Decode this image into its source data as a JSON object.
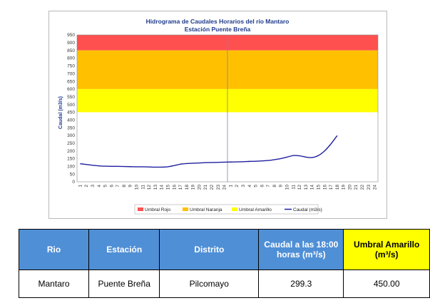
{
  "chart_data": {
    "type": "line",
    "title": "Hidrograma de Caudales Horarios del río Mantaro",
    "subtitle": "Estación Puente Breña",
    "ylabel": "Caudal  (m3/s)",
    "xlabel": "",
    "ylim": [
      0,
      950
    ],
    "yticks": [
      0,
      50,
      100,
      150,
      200,
      250,
      300,
      350,
      400,
      450,
      500,
      550,
      600,
      650,
      700,
      750,
      800,
      850,
      900,
      950
    ],
    "x_ticks": [
      "1",
      "2",
      "3",
      "4",
      "5",
      "6",
      "7",
      "8",
      "9",
      "10",
      "11",
      "12",
      "13",
      "14",
      "15",
      "16",
      "17",
      "18",
      "19",
      "20",
      "21",
      "22",
      "23",
      "24",
      "1",
      "2",
      "3",
      "4",
      "5",
      "6",
      "7",
      "8",
      "9",
      "10",
      "11",
      "12",
      "13",
      "14",
      "15",
      "16",
      "17",
      "18",
      "19",
      "20",
      "21",
      "22",
      "23",
      "24"
    ],
    "bands": [
      {
        "name": "Umbral Rojo",
        "from": 850,
        "to": 950,
        "color": "#ff5050"
      },
      {
        "name": "Umbral Naranja",
        "from": 600,
        "to": 850,
        "color": "#ffc000"
      },
      {
        "name": "Umbral Amarillo",
        "from": 450,
        "to": 600,
        "color": "#ffff00"
      }
    ],
    "series": [
      {
        "name": "Caudal (m3/s)",
        "color": "#1f1fa0",
        "values": [
          117,
          112,
          107,
          103,
          101,
          100,
          100,
          99,
          98,
          97,
          97,
          96,
          95,
          95,
          97,
          105,
          114,
          118,
          120,
          122,
          124,
          125,
          126,
          127,
          128,
          129,
          130,
          132,
          133,
          135,
          138,
          143,
          150,
          160,
          170,
          168,
          160,
          157,
          170,
          200,
          245,
          299
        ]
      }
    ],
    "legend": [
      "Umbral Rojo",
      "Umbral Naranja",
      "Umbral Amarillo",
      "Caudal (m3/s)"
    ],
    "legend_position": "bottom",
    "day_separator_after_index": 24
  },
  "table": {
    "headers": [
      "Rio",
      "Estación",
      "Distrito",
      "Caudal a las 18:00 horas (m³/s)",
      "Umbral Amarillo (m³/s)"
    ],
    "row": [
      "Mantaro",
      "Puente Breña",
      "Pilcomayo",
      "299.3",
      "450.00"
    ]
  }
}
